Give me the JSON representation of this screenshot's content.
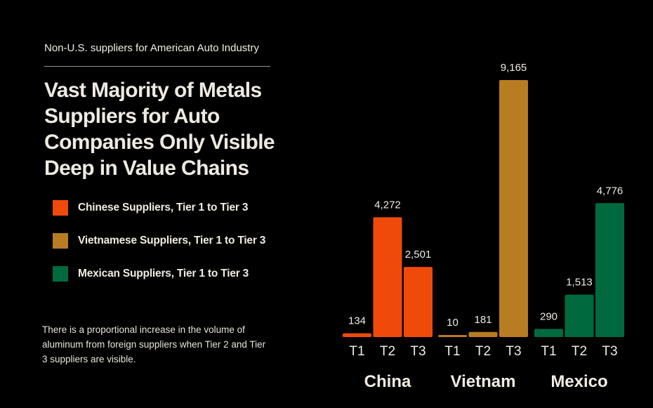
{
  "kicker": "Non-U.S. suppliers for American Auto Industry",
  "headline": "Vast Majority of Metals Suppliers for Auto Companies Only Visible Deep in Value Chains",
  "legend": [
    {
      "label": "Chinese Suppliers, Tier 1 to Tier 3",
      "color": "#f04a0a"
    },
    {
      "label": "Vietnamese Suppliers, Tier 1 to Tier 3",
      "color": "#b87c22"
    },
    {
      "label": "Mexican Suppliers, Tier 1 to Tier 3",
      "color": "#006a3e"
    }
  ],
  "note": "There is a proportional increase in the volume of aluminum from foreign suppliers when Tier 2 and Tier 3 suppliers are visible.",
  "chart_data": {
    "type": "bar",
    "title": "",
    "xlabel": "",
    "ylabel": "",
    "ylim": [
      0,
      9165
    ],
    "grid": false,
    "groups": [
      {
        "name": "China",
        "color": "#f04a0a",
        "categories": [
          "T1",
          "T2",
          "T3"
        ],
        "values": [
          134,
          4272,
          2501
        ],
        "labels": [
          "134",
          "4,272",
          "2,501"
        ]
      },
      {
        "name": "Vietnam",
        "color": "#b87c22",
        "categories": [
          "T1",
          "T2",
          "T3"
        ],
        "values": [
          10,
          181,
          9165
        ],
        "labels": [
          "10",
          "181",
          "9,165"
        ]
      },
      {
        "name": "Mexico",
        "color": "#006a3e",
        "categories": [
          "T1",
          "T2",
          "T3"
        ],
        "values": [
          290,
          1513,
          4776
        ],
        "labels": [
          "290",
          "1,513",
          "4,776"
        ]
      }
    ]
  }
}
